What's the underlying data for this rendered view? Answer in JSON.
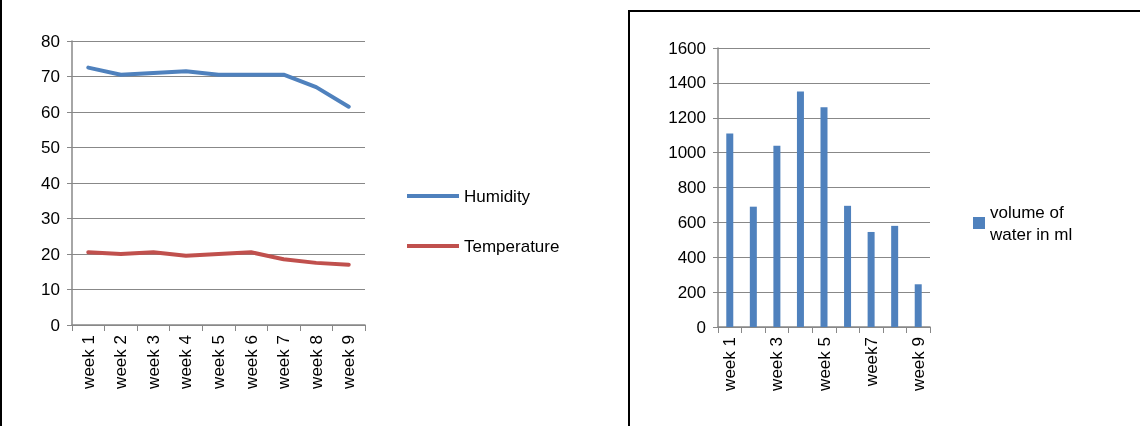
{
  "chart_data": [
    {
      "type": "line",
      "categories": [
        "week 1",
        "week 2",
        "week 3",
        "week 4",
        "week 5",
        "week 6",
        "week 7",
        "week 8",
        "week 9"
      ],
      "series": [
        {
          "name": "Humidity",
          "color": "#4f81bd",
          "values": [
            72.5,
            70.5,
            71,
            71.5,
            70.5,
            70.5,
            70.5,
            67,
            61.5
          ]
        },
        {
          "name": "Temperature",
          "color": "#c0504d",
          "values": [
            20.5,
            20,
            20.5,
            19.5,
            20,
            20.5,
            18.5,
            17.5,
            17
          ]
        }
      ],
      "ylim": [
        0,
        80
      ],
      "yticks": [
        0,
        10,
        20,
        30,
        40,
        50,
        60,
        70,
        80
      ],
      "grid": "y",
      "legend": "right",
      "marker": "none",
      "line_style": "solid"
    },
    {
      "type": "bar",
      "categories": [
        "week 1",
        null,
        "week 3",
        null,
        "week 5",
        null,
        "week7",
        null,
        "week 9"
      ],
      "series": [
        {
          "name": "volume of water in ml",
          "color": "#4f81bd",
          "values": [
            1110,
            690,
            1040,
            1350,
            1260,
            695,
            545,
            580,
            245
          ]
        }
      ],
      "ylim": [
        0,
        1600
      ],
      "yticks": [
        0,
        200,
        400,
        600,
        800,
        1000,
        1200,
        1400,
        1600
      ],
      "grid": "y",
      "legend": "right"
    }
  ]
}
